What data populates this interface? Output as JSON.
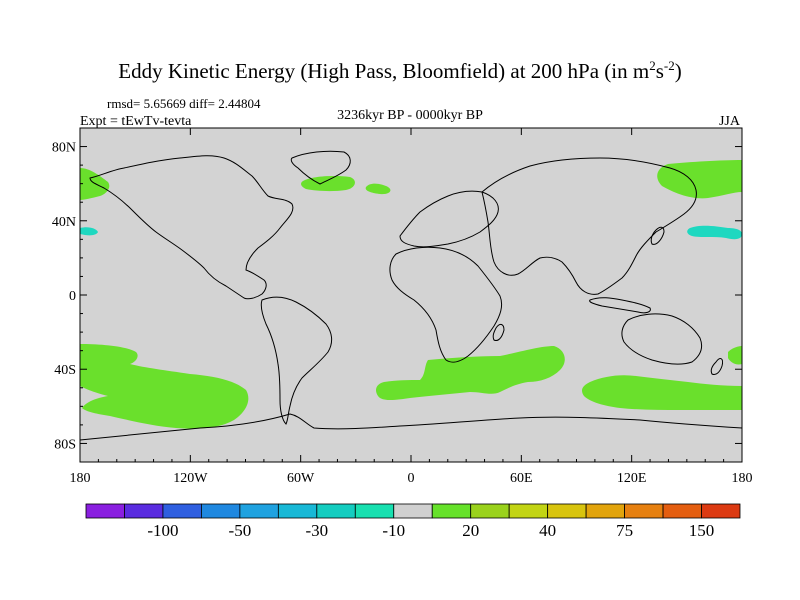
{
  "title": {
    "main": "Eddy Kinetic Energy (High Pass, Bloomfield) at 200 hPa (in m",
    "sup1": "2",
    "mid": "s",
    "sup2": "-2",
    "close": ")"
  },
  "stats": {
    "rmsd_diff": "rmsd= 5.65669 diff= 2.44804",
    "experiment": "Expt = tEwTv-tevta",
    "period": "3236kyr BP - 0000kyr BP",
    "season": "JJA"
  },
  "axes": {
    "lat_labels": [
      "80N",
      "40N",
      "0",
      "40S",
      "80S"
    ],
    "lat_values": [
      80,
      40,
      0,
      -40,
      -80
    ],
    "lon_labels": [
      "180",
      "120W",
      "60W",
      "0",
      "60E",
      "120E",
      "180"
    ],
    "lon_values": [
      -180,
      -120,
      -60,
      0,
      60,
      120,
      180
    ],
    "lon_range": [
      -180,
      180
    ],
    "lat_range": [
      -90,
      90
    ]
  },
  "colorbar": {
    "colors": [
      "#8a1fe0",
      "#5a2ce0",
      "#2f5fe0",
      "#1f88e0",
      "#1fa2e0",
      "#18b8d6",
      "#14cdc0",
      "#18e0b0",
      "#d0d0d0",
      "#66e22a",
      "#9ad21c",
      "#c2d414",
      "#d8c40e",
      "#e2a40c",
      "#e68010",
      "#e45e10",
      "#dc3a12"
    ],
    "labels": [
      "-100",
      "-50",
      "-30",
      "-10",
      "20",
      "40",
      "75",
      "150"
    ],
    "label_after_box": [
      1,
      3,
      5,
      7,
      9,
      11,
      13,
      15
    ]
  },
  "map": {
    "background": "#d3d3d3",
    "positive_color": "#6ae02c",
    "negative_color": "#1ed8c0",
    "regions": [
      {
        "name": "positive-anomaly-north-pacific-east",
        "sign": "positive",
        "lon": -180,
        "lat": 58
      },
      {
        "name": "negative-anomaly-north-pacific-east",
        "sign": "negative",
        "lon": -178,
        "lat": 36
      },
      {
        "name": "positive-anomaly-greenland-east",
        "sign": "positive",
        "lon": -35,
        "lat": 62
      },
      {
        "name": "positive-anomaly-iceland",
        "sign": "positive",
        "lon": -15,
        "lat": 60
      },
      {
        "name": "positive-anomaly-north-pacific-west",
        "sign": "positive",
        "lon": 160,
        "lat": 60
      },
      {
        "name": "negative-anomaly-north-pacific-west",
        "sign": "negative",
        "lon": 165,
        "lat": 38
      },
      {
        "name": "positive-anomaly-south-pacific",
        "sign": "positive",
        "lon": -140,
        "lat": -45
      },
      {
        "name": "positive-anomaly-south-atlantic",
        "sign": "positive",
        "lon": 35,
        "lat": -45
      },
      {
        "name": "positive-anomaly-south-indian",
        "sign": "positive",
        "lon": 140,
        "lat": -55
      }
    ]
  }
}
